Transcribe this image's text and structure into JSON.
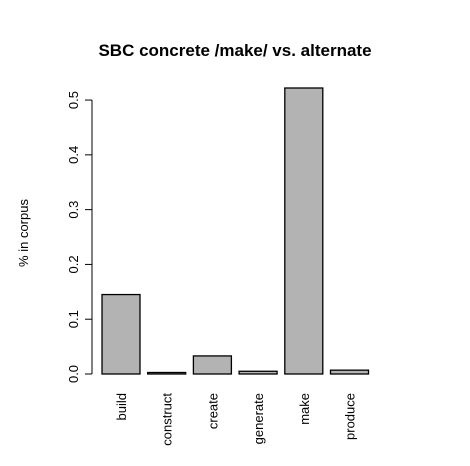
{
  "chart_data": {
    "type": "bar",
    "title": "SBC concrete /make/ vs. alternate",
    "xlabel": "",
    "ylabel": "% in corpus",
    "categories": [
      "build",
      "construct",
      "create",
      "generate",
      "make",
      "produce"
    ],
    "values": [
      0.145,
      0.002,
      0.033,
      0.005,
      0.522,
      0.007
    ],
    "yticks": [
      0.0,
      0.1,
      0.2,
      0.3,
      0.4,
      0.5
    ],
    "ytick_labels": [
      "0.0",
      "0.1",
      "0.2",
      "0.3",
      "0.4",
      "0.5"
    ],
    "ylim": [
      0,
      0.522
    ],
    "grid": false,
    "bar_color": "#b3b3b3",
    "edge_color": "#000000"
  }
}
